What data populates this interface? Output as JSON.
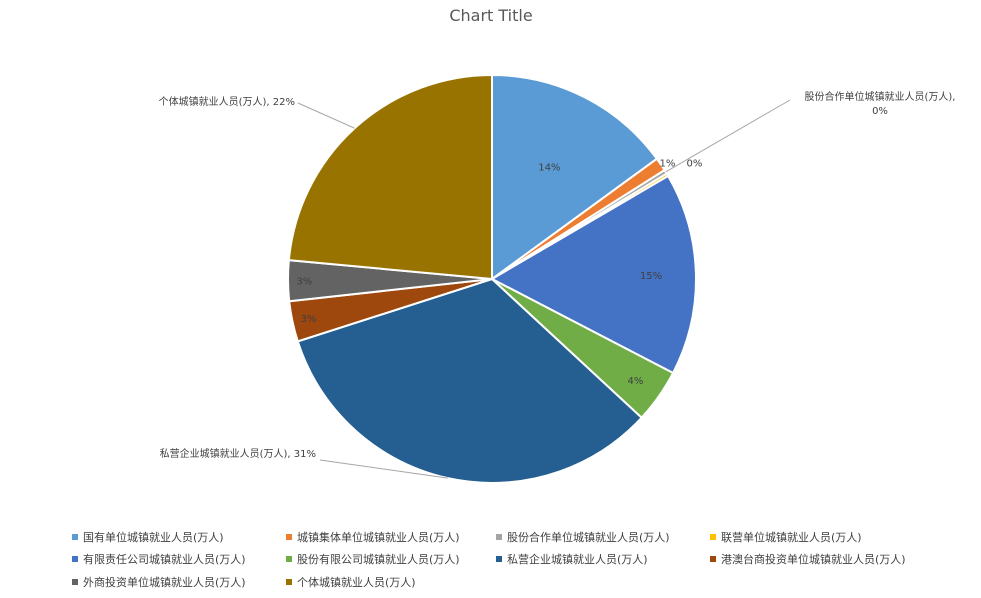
{
  "chart_data": {
    "type": "pie",
    "title": "Chart Title",
    "legend_position": "bottom",
    "slices": [
      {
        "name": "国有单位城镇就业人员(万人)",
        "value": 14,
        "label": "14%",
        "color": "#5B9BD5"
      },
      {
        "name": "城镇集体单位城镇就业人员(万人)",
        "value": 1,
        "label": "1%",
        "color": "#ED7D31"
      },
      {
        "name": "股份合作单位城镇就业人员(万人)",
        "value": 0.3,
        "label": "股份合作单位城镇就业人员(万人), 0%",
        "color": "#A5A5A5"
      },
      {
        "name": "联营单位城镇就业人员(万人)",
        "value": 0.2,
        "label": "0%",
        "color": "#FFC000"
      },
      {
        "name": "有限责任公司城镇就业人员(万人)",
        "value": 15,
        "label": "15%",
        "color": "#4472C4"
      },
      {
        "name": "股份有限公司城镇就业人员(万人)",
        "value": 4,
        "label": "4%",
        "color": "#70AD47"
      },
      {
        "name": "私营企业城镇就业人员(万人)",
        "value": 31,
        "label": "私营企业城镇就业人员(万人), 31%",
        "color": "#255E91"
      },
      {
        "name": "港澳台商投资单位城镇就业人员(万人)",
        "value": 3,
        "label": "3%",
        "color": "#9E480E"
      },
      {
        "name": "外商投资单位城镇就业人员(万人)",
        "value": 3,
        "label": "3%",
        "color": "#636363"
      },
      {
        "name": "个体城镇就业人员(万人)",
        "value": 22,
        "label": "个体城镇就业人员(万人), 22%",
        "color": "#997300"
      }
    ]
  }
}
